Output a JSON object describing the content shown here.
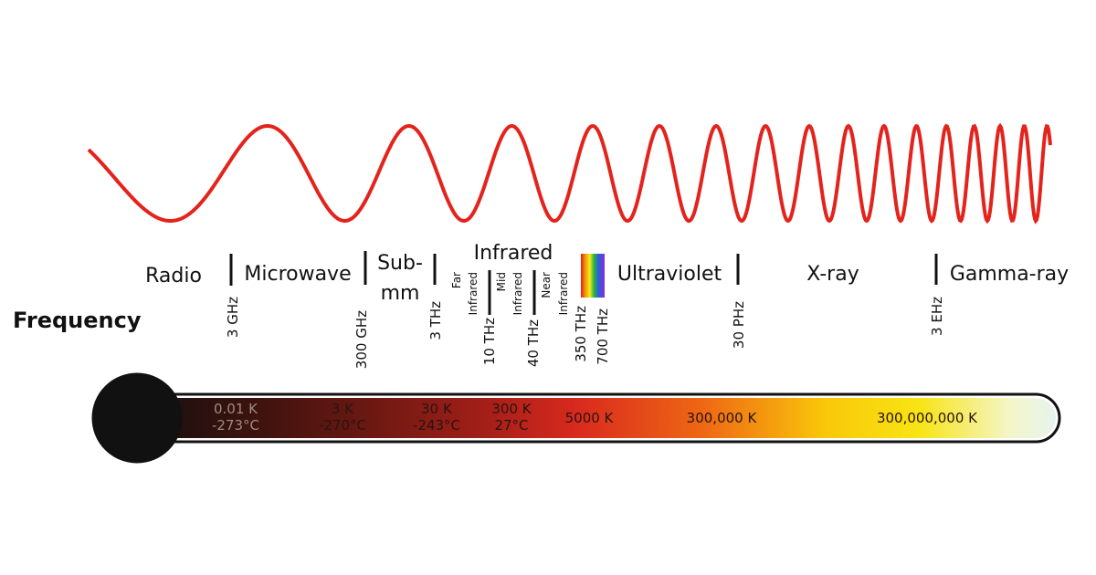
{
  "bands": {
    "radio": "Radio",
    "microwave": "Microwave",
    "submm": [
      "Sub-",
      "mm"
    ],
    "infrared": {
      "title": "Infrared",
      "parts": [
        [
          "Far",
          "Infrared"
        ],
        [
          "Mid",
          "Infrared"
        ],
        [
          "Near",
          "Infrared"
        ]
      ]
    },
    "ultraviolet": "Ultraviolet",
    "xray": "X-ray",
    "gamma": "Gamma-ray"
  },
  "frequency_label": "Frequency",
  "frequencies": [
    "3 GHz",
    "300 GHz",
    "3 THz",
    "10 THz",
    "40 THz",
    "350 THz",
    "700 THz",
    "30 PHz",
    "3 EHz"
  ],
  "temperatures": [
    {
      "kelvin": "0.01 K",
      "celsius": "-273°C"
    },
    {
      "kelvin": "3 K",
      "celsius": "-270°C"
    },
    {
      "kelvin": "30 K",
      "celsius": "-243°C"
    },
    {
      "kelvin": "300 K",
      "celsius": "27°C"
    },
    {
      "kelvin": "5000 K"
    },
    {
      "kelvin": "300,000 K"
    },
    {
      "kelvin": "300,000,000 K"
    }
  ]
}
